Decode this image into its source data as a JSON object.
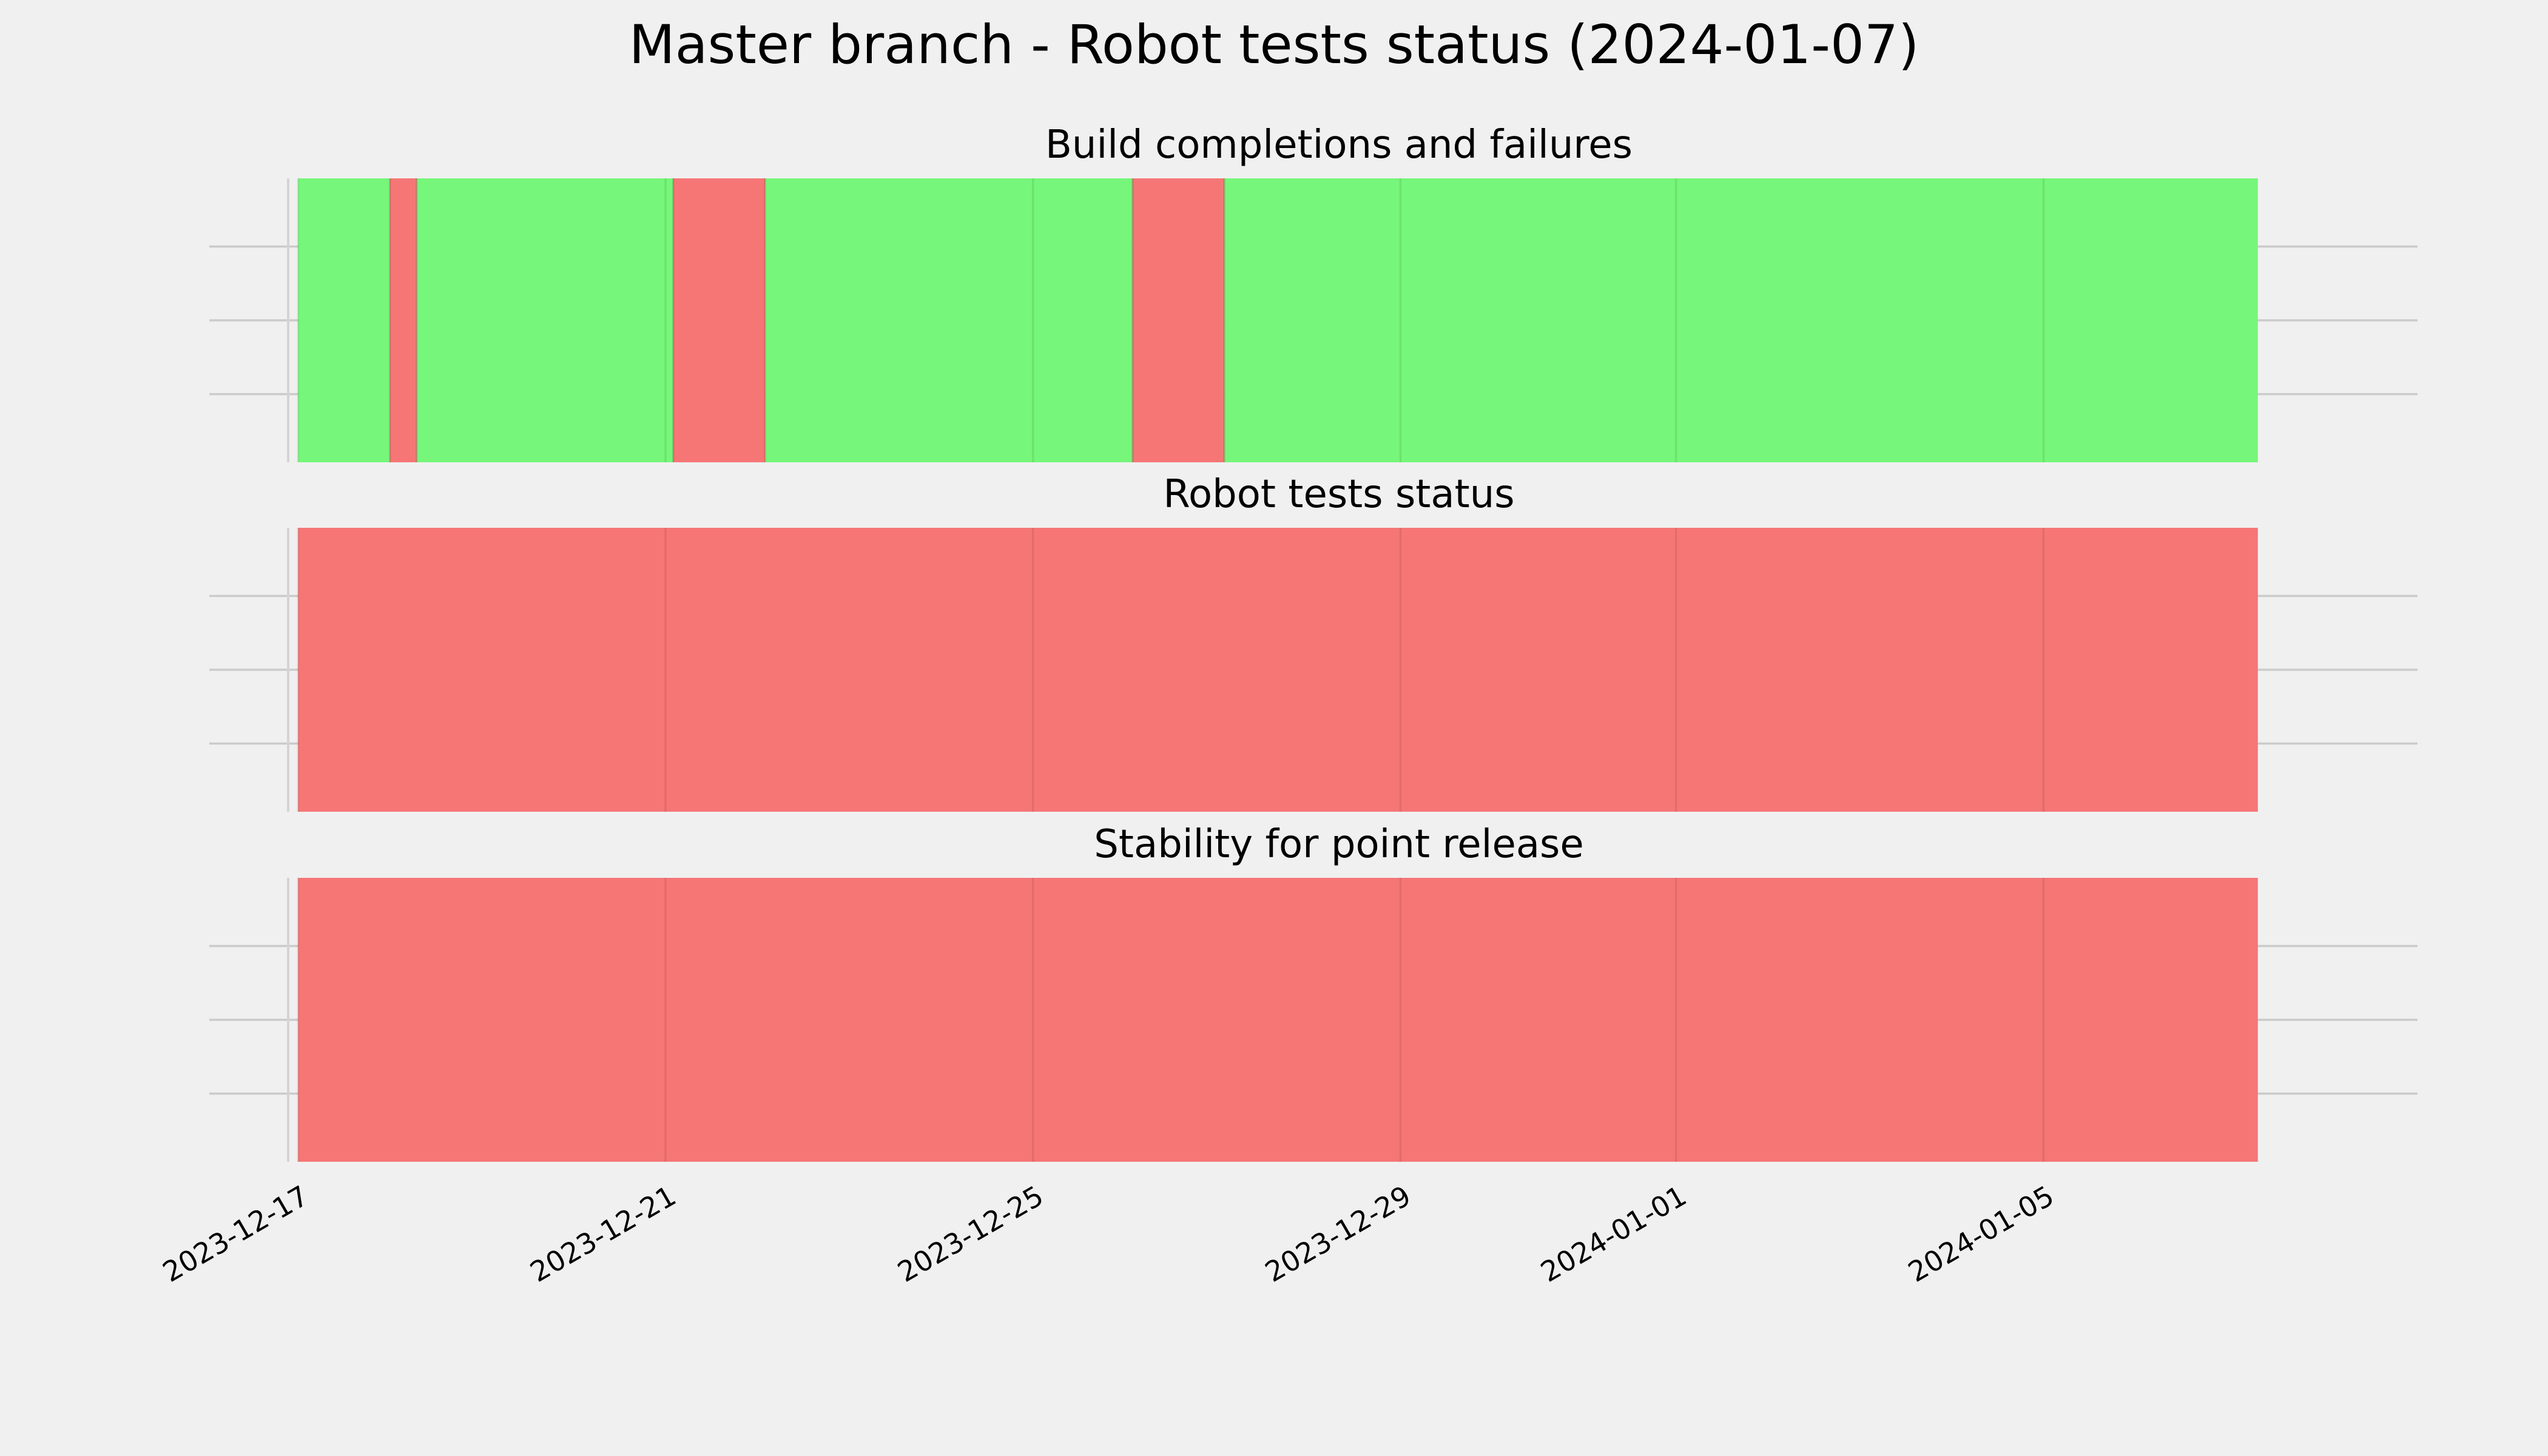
{
  "chart_data": {
    "type": "timeline",
    "title": "Master branch - Robot tests status (2024-01-07)",
    "x_ticks": [
      "2023-12-17",
      "2023-12-21",
      "2023-12-25",
      "2023-12-29",
      "2024-01-01",
      "2024-01-05"
    ],
    "xlim": [
      "2023-12-16T23:00",
      "2024-01-08T01:00"
    ],
    "colors": {
      "pass": "#76f67a",
      "fail": "#f67676",
      "background": "#f0f0f0"
    },
    "grid": true,
    "panels": [
      {
        "title": "Build completions and failures",
        "segments": [
          {
            "start": "2023-12-17T00:00",
            "end": "2023-12-18T00:00",
            "status": "pass"
          },
          {
            "start": "2023-12-18T00:00",
            "end": "2023-12-18T07:00",
            "status": "fail"
          },
          {
            "start": "2023-12-18T07:00",
            "end": "2023-12-21T02:00",
            "status": "pass"
          },
          {
            "start": "2023-12-21T02:00",
            "end": "2023-12-22T02:00",
            "status": "fail"
          },
          {
            "start": "2023-12-22T02:00",
            "end": "2023-12-26T02:00",
            "status": "pass"
          },
          {
            "start": "2023-12-26T02:00",
            "end": "2023-12-27T02:00",
            "status": "fail"
          },
          {
            "start": "2023-12-27T02:00",
            "end": "2024-01-07T08:00",
            "status": "pass"
          }
        ]
      },
      {
        "title": "Robot tests status",
        "segments": [
          {
            "start": "2023-12-17T00:00",
            "end": "2024-01-07T08:00",
            "status": "fail"
          }
        ]
      },
      {
        "title": "Stability for point release",
        "segments": [
          {
            "start": "2023-12-17T00:00",
            "end": "2024-01-07T08:00",
            "status": "fail"
          }
        ]
      }
    ]
  }
}
